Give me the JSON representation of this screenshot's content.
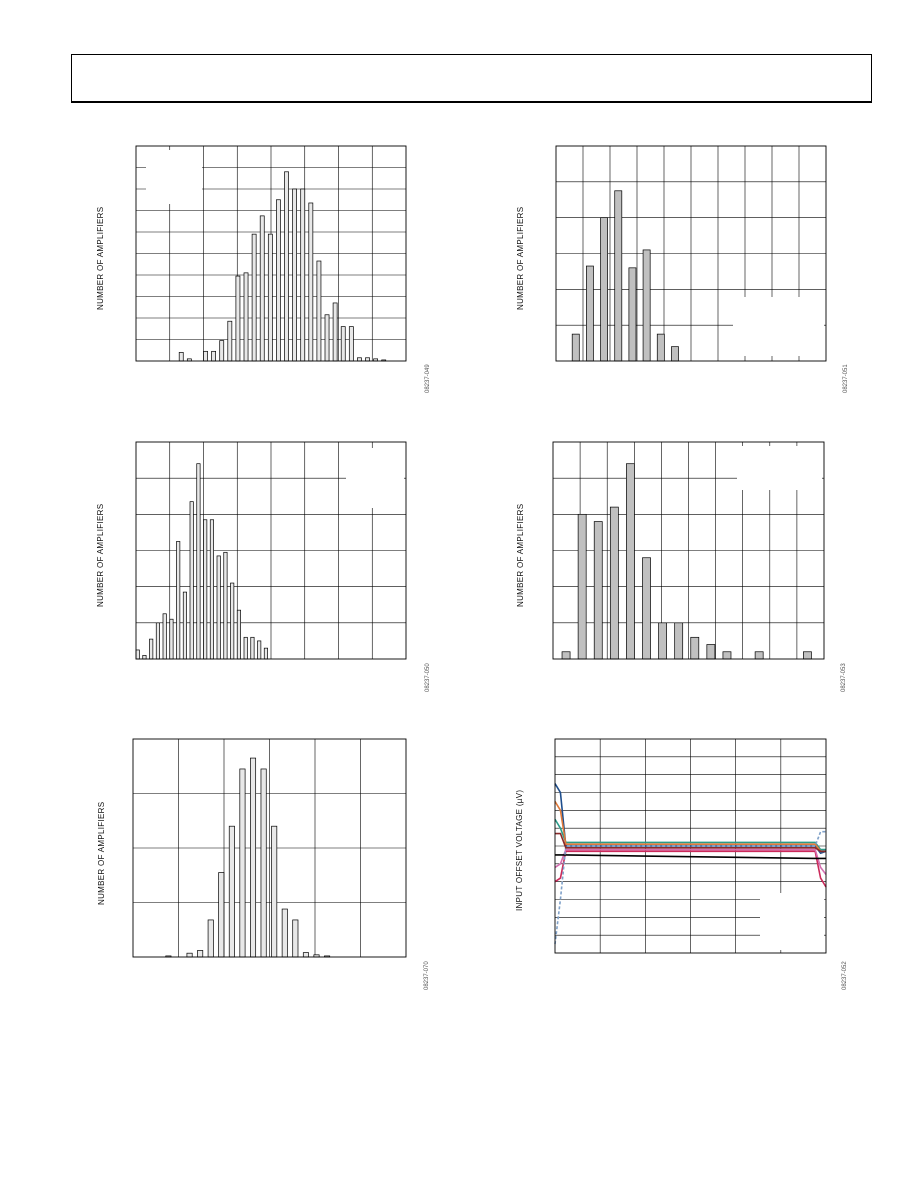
{
  "figures": [
    {
      "ylabel": "NUMBER OF AMPLIFIERS",
      "figure_id": "08237-049",
      "chart_data": {
        "type": "bar",
        "title": "",
        "xlabel": "",
        "ylabel": "NUMBER OF AMPLIFIERS",
        "values": [
          0.4,
          0.1,
          0,
          0.45,
          0.45,
          0.95,
          1.85,
          3.95,
          4.1,
          5.9,
          6.75,
          5.9,
          7.5,
          8.8,
          8.0,
          8.0,
          7.35,
          4.65,
          2.15,
          2.7,
          1.6,
          1.6,
          0.15,
          0.15,
          0.1,
          0.05
        ],
        "ylim": [
          0,
          10
        ],
        "grid": true
      },
      "colors": {
        "bar_fill": "#e8e8e8",
        "bar_edge": "#000000",
        "grid": "#000000"
      }
    },
    {
      "ylabel": "NUMBER OF AMPLIFIERS",
      "figure_id": "08237-051",
      "chart_data": {
        "type": "bar",
        "title": "",
        "xlabel": "",
        "ylabel": "NUMBER OF AMPLIFIERS",
        "values": [
          0.75,
          2.65,
          4.0,
          4.75,
          2.6,
          3.1,
          0.75,
          0.4
        ],
        "ylim": [
          0,
          6
        ],
        "grid": true
      },
      "colors": {
        "bar_fill": "#c0c0c0",
        "bar_edge": "#000000",
        "grid": "#000000"
      }
    },
    {
      "ylabel": "NUMBER OF AMPLIFIERS",
      "figure_id": "08237-050",
      "chart_data": {
        "type": "bar",
        "title": "",
        "xlabel": "",
        "ylabel": "NUMBER OF AMPLIFIERS",
        "values": [
          0.25,
          0.1,
          0.55,
          1.0,
          1.25,
          1.1,
          3.25,
          1.85,
          4.35,
          5.4,
          3.85,
          3.85,
          2.85,
          2.95,
          2.1,
          1.35,
          0.6,
          0.6,
          0.5,
          0.3
        ],
        "ylim": [
          0,
          6
        ],
        "grid": true
      },
      "colors": {
        "bar_fill": "#e8e8e8",
        "bar_edge": "#000000",
        "grid": "#000000"
      }
    },
    {
      "ylabel": "NUMBER OF AMPLIFIERS",
      "figure_id": "08237-053",
      "chart_data": {
        "type": "bar",
        "title": "",
        "xlabel": "",
        "ylabel": "NUMBER OF AMPLIFIERS",
        "values": [
          0.2,
          4.0,
          3.8,
          4.2,
          5.4,
          2.8,
          1.0,
          1.0,
          0.6,
          0.4,
          0.2,
          0,
          0.2,
          0,
          0,
          0.2
        ],
        "ylim": [
          0,
          6
        ],
        "grid": true
      },
      "colors": {
        "bar_fill": "#c0c0c0",
        "bar_edge": "#000000",
        "grid": "#000000"
      }
    },
    {
      "ylabel": "NUMBER OF AMPLIFIERS",
      "figure_id": "08237-070",
      "chart_data": {
        "type": "bar",
        "title": "",
        "xlabel": "",
        "ylabel": "NUMBER OF AMPLIFIERS",
        "values": [
          0.02,
          0,
          0.07,
          0.12,
          0.68,
          1.55,
          2.4,
          3.45,
          3.65,
          3.45,
          2.4,
          0.88,
          0.68,
          0.08,
          0.04,
          0.02
        ],
        "ylim": [
          0,
          4
        ],
        "grid": true
      },
      "colors": {
        "bar_fill": "#e8e8e8",
        "bar_edge": "#000000",
        "grid": "#000000"
      }
    },
    {
      "ylabel": "INPUT OFFSET VOLTAGE (µV)",
      "figure_id": "08237-052",
      "chart_data": {
        "type": "line",
        "title": "",
        "xlabel": "",
        "ylabel": "INPUT OFFSET VOLTAGE (µV)",
        "xlim": [
          0,
          1
        ],
        "ylim": [
          -6,
          6
        ],
        "grid": true,
        "series": [
          {
            "color": "#1f4e8c",
            "x": [
              0,
              0.02,
              0.04,
              0.96,
              0.98,
              1
            ],
            "y": [
              3.5,
              3.0,
              0,
              0,
              -0.4,
              -0.3
            ]
          },
          {
            "color": "#2b9c8a",
            "x": [
              0,
              0.02,
              0.04,
              0.96,
              0.98,
              1
            ],
            "y": [
              1.5,
              1.0,
              0.2,
              0.2,
              -0.2,
              -0.2
            ]
          },
          {
            "color": "#e07a3a",
            "x": [
              0,
              0.02,
              0.04,
              0.96,
              0.98,
              1
            ],
            "y": [
              2.5,
              2.0,
              0.1,
              0.1,
              -0.3,
              -0.3
            ]
          },
          {
            "color": "#cc2a5a",
            "x": [
              0,
              0.02,
              0.04,
              0.96,
              0.98,
              1
            ],
            "y": [
              -2.0,
              -1.8,
              -0.3,
              -0.3,
              -1.8,
              -2.3
            ]
          },
          {
            "color": "#d46fb0",
            "x": [
              0,
              0.02,
              0.04,
              0.96,
              0.98,
              1
            ],
            "y": [
              -1.2,
              -1.0,
              -0.2,
              -0.2,
              -1.2,
              -1.6
            ]
          },
          {
            "color": "#000000",
            "x": [
              0,
              0.02,
              0.04,
              0.96,
              0.98,
              1
            ],
            "y": [
              -0.5,
              -0.5,
              -0.5,
              -0.7,
              -0.7,
              -0.7
            ]
          },
          {
            "color": "#7fa0c8",
            "x": [
              0,
              0.02,
              0.04,
              0.96,
              0.98,
              1
            ],
            "y": [
              -5.5,
              -3.0,
              0,
              0,
              0.8,
              0.8
            ],
            "dashed": true
          },
          {
            "color": "#8a2a2a",
            "x": [
              0,
              0.02,
              0.04,
              0.96,
              0.98,
              1
            ],
            "y": [
              0.7,
              0.7,
              -0.1,
              -0.1,
              -0.3,
              -0.3
            ]
          }
        ]
      },
      "colors": {
        "grid": "#000000"
      }
    }
  ]
}
